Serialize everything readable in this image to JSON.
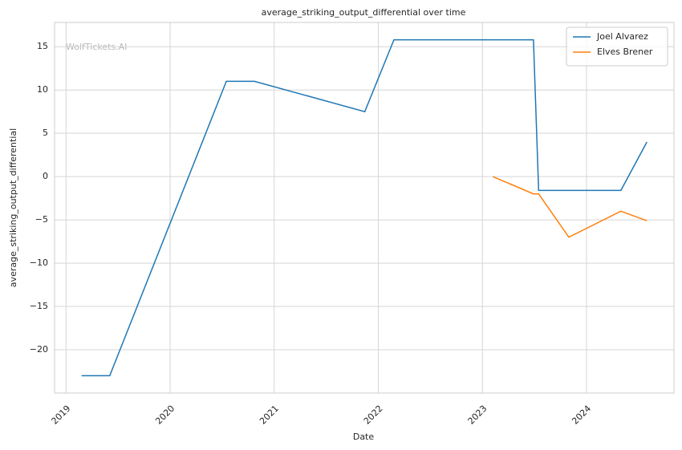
{
  "chart_data": {
    "type": "line",
    "title": "average_striking_output_differential over time",
    "watermark": "WolfTickets.AI",
    "x_label": "Date",
    "y_label": "average_striking_output_differential",
    "xlim": [
      2018.89,
      2024.84
    ],
    "xticks": [
      2019,
      2020,
      2021,
      2022,
      2023,
      2024
    ],
    "ylim": [
      -25,
      17.8
    ],
    "yticks": [
      {
        "value": -20,
        "label": "−20"
      },
      {
        "value": -15,
        "label": "−15"
      },
      {
        "value": -10,
        "label": "−10"
      },
      {
        "value": -5,
        "label": "−5"
      },
      0,
      5,
      10,
      15
    ],
    "grid": true,
    "legend": "upper right",
    "series": [
      {
        "name": "Joel Alvarez",
        "color": "#1f77b4",
        "x": [
          2019.15,
          2019.42,
          2020.54,
          2020.81,
          2021.87,
          2022.15,
          2023.49,
          2023.54,
          2024.33,
          2024.58
        ],
        "values": [
          -23,
          -23,
          11,
          11,
          7.5,
          15.8,
          15.8,
          -1.6,
          -1.6,
          4
        ]
      },
      {
        "name": "Elves Brener",
        "color": "#ff7f0e",
        "x": [
          2023.1,
          2023.49,
          2023.54,
          2023.83,
          2024.33,
          2024.58
        ],
        "values": [
          0,
          -2,
          -2,
          -7,
          -4,
          -5.1
        ]
      }
    ]
  }
}
